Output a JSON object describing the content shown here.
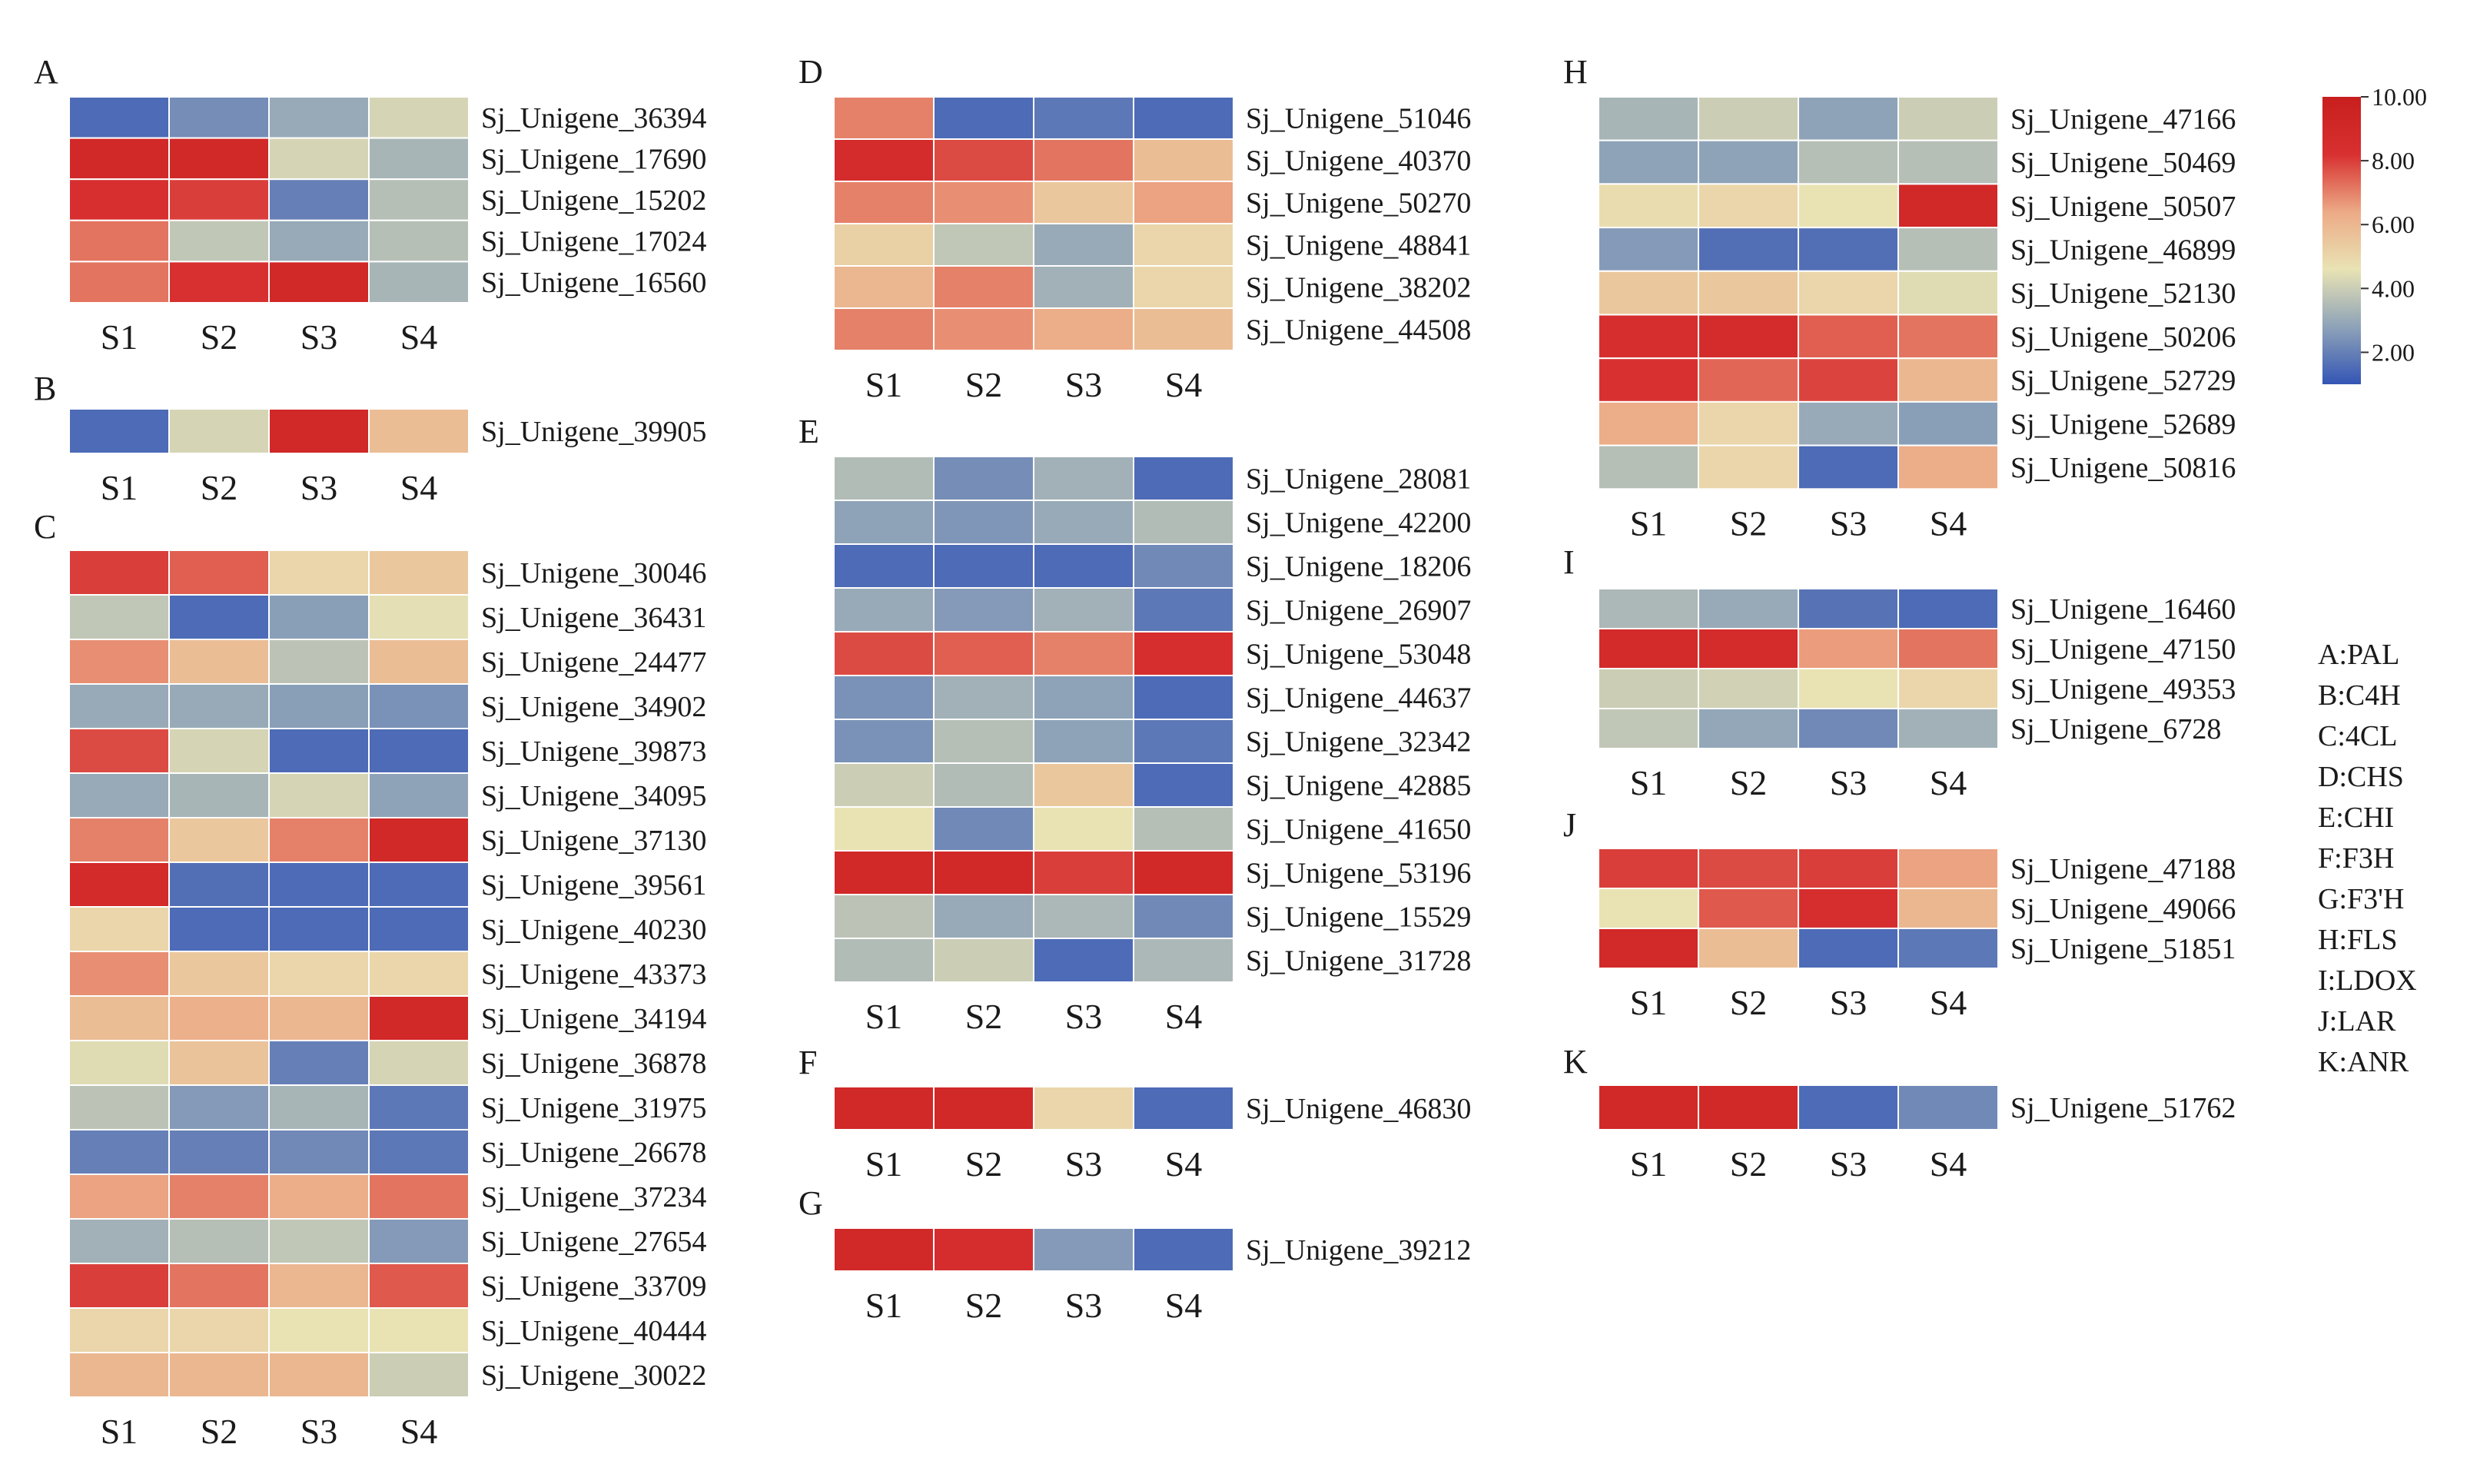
{
  "chart_data": {
    "type": "heatmap",
    "color_scale": {
      "min": 1.0,
      "max": 10.0,
      "ticks": [
        "10.00",
        "8.00",
        "6.00",
        "4.00",
        "2.00"
      ],
      "colors": [
        "#3455b5",
        "#8ea3b8",
        "#e9e3b4",
        "#ecaa86",
        "#d83030",
        "#c81e1e"
      ]
    },
    "columns": [
      "S1",
      "S2",
      "S3",
      "S4"
    ],
    "panels": [
      {
        "letter": "A",
        "rows": [
          {
            "label": "Sj_Unigene_36394",
            "values": [
              1.5,
              2.3,
              3.0,
              4.2
            ]
          },
          {
            "label": "Sj_Unigene_17690",
            "values": [
              9.0,
              9.0,
              4.2,
              3.3
            ]
          },
          {
            "label": "Sj_Unigene_15202",
            "values": [
              8.3,
              8.0,
              2.0,
              3.6
            ]
          },
          {
            "label": "Sj_Unigene_17024",
            "values": [
              7.2,
              3.8,
              3.0,
              3.6
            ]
          },
          {
            "label": "Sj_Unigene_16560",
            "values": [
              7.2,
              8.2,
              9.0,
              3.3
            ]
          }
        ]
      },
      {
        "letter": "B",
        "rows": [
          {
            "label": "Sj_Unigene_39905",
            "values": [
              1.5,
              4.2,
              9.0,
              5.8
            ]
          }
        ]
      },
      {
        "letter": "C",
        "rows": [
          {
            "label": "Sj_Unigene_30046",
            "values": [
              8.0,
              7.5,
              5.0,
              5.5
            ]
          },
          {
            "label": "Sj_Unigene_36431",
            "values": [
              3.8,
              1.5,
              2.7,
              4.5
            ]
          },
          {
            "label": "Sj_Unigene_24477",
            "values": [
              6.8,
              5.8,
              3.7,
              5.8
            ]
          },
          {
            "label": "Sj_Unigene_34902",
            "values": [
              3.0,
              3.0,
              2.7,
              2.4
            ]
          },
          {
            "label": "Sj_Unigene_39873",
            "values": [
              7.8,
              4.2,
              1.5,
              1.5
            ]
          },
          {
            "label": "Sj_Unigene_34095",
            "values": [
              3.0,
              3.3,
              4.2,
              2.8
            ]
          },
          {
            "label": "Sj_Unigene_37130",
            "values": [
              7.0,
              5.5,
              7.0,
              9.0
            ]
          },
          {
            "label": "Sj_Unigene_39561",
            "values": [
              8.8,
              1.6,
              1.5,
              1.5
            ]
          },
          {
            "label": "Sj_Unigene_40230",
            "values": [
              5.0,
              1.5,
              1.5,
              1.5
            ]
          },
          {
            "label": "Sj_Unigene_43373",
            "values": [
              6.8,
              5.5,
              5.0,
              5.0
            ]
          },
          {
            "label": "Sj_Unigene_34194",
            "values": [
              5.8,
              6.2,
              6.0,
              9.0
            ]
          },
          {
            "label": "Sj_Unigene_36878",
            "values": [
              4.4,
              5.6,
              2.0,
              4.2
            ]
          },
          {
            "label": "Sj_Unigene_31975",
            "values": [
              3.7,
              2.6,
              3.3,
              1.8
            ]
          },
          {
            "label": "Sj_Unigene_26678",
            "values": [
              2.0,
              2.0,
              2.2,
              1.8
            ]
          },
          {
            "label": "Sj_Unigene_37234",
            "values": [
              6.5,
              7.0,
              6.3,
              7.2
            ]
          },
          {
            "label": "Sj_Unigene_27654",
            "values": [
              3.2,
              3.6,
              3.8,
              2.6
            ]
          },
          {
            "label": "Sj_Unigene_33709",
            "values": [
              8.0,
              7.2,
              6.0,
              7.6
            ]
          },
          {
            "label": "Sj_Unigene_40444",
            "values": [
              5.0,
              5.0,
              4.6,
              4.6
            ]
          },
          {
            "label": "Sj_Unigene_30022",
            "values": [
              6.0,
              6.0,
              6.0,
              4.0
            ]
          }
        ]
      },
      {
        "letter": "D",
        "rows": [
          {
            "label": "Sj_Unigene_51046",
            "values": [
              7.0,
              1.5,
              1.8,
              1.5
            ]
          },
          {
            "label": "Sj_Unigene_40370",
            "values": [
              8.6,
              7.8,
              7.2,
              5.8
            ]
          },
          {
            "label": "Sj_Unigene_50270",
            "values": [
              7.0,
              6.8,
              5.5,
              6.5
            ]
          },
          {
            "label": "Sj_Unigene_48841",
            "values": [
              5.2,
              3.8,
              3.0,
              5.0
            ]
          },
          {
            "label": "Sj_Unigene_38202",
            "values": [
              6.0,
              7.0,
              3.2,
              5.0
            ]
          },
          {
            "label": "Sj_Unigene_44508",
            "values": [
              7.0,
              6.8,
              6.3,
              5.8
            ]
          }
        ]
      },
      {
        "letter": "E",
        "rows": [
          {
            "label": "Sj_Unigene_28081",
            "values": [
              3.5,
              2.3,
              3.2,
              1.5
            ]
          },
          {
            "label": "Sj_Unigene_42200",
            "values": [
              2.8,
              2.5,
              3.0,
              3.5
            ]
          },
          {
            "label": "Sj_Unigene_18206",
            "values": [
              1.5,
              1.5,
              1.5,
              2.2
            ]
          },
          {
            "label": "Sj_Unigene_26907",
            "values": [
              3.0,
              2.6,
              3.2,
              1.8
            ]
          },
          {
            "label": "Sj_Unigene_53048",
            "values": [
              7.8,
              7.5,
              7.0,
              8.4
            ]
          },
          {
            "label": "Sj_Unigene_44637",
            "values": [
              2.4,
              3.2,
              2.8,
              1.5
            ]
          },
          {
            "label": "Sj_Unigene_32342",
            "values": [
              2.4,
              3.6,
              2.8,
              1.8
            ]
          },
          {
            "label": "Sj_Unigene_42885",
            "values": [
              4.0,
              3.5,
              5.5,
              1.5
            ]
          },
          {
            "label": "Sj_Unigene_41650",
            "values": [
              4.6,
              2.2,
              4.6,
              3.6
            ]
          },
          {
            "label": "Sj_Unigene_53196",
            "values": [
              9.0,
              9.0,
              8.0,
              9.0
            ]
          },
          {
            "label": "Sj_Unigene_15529",
            "values": [
              3.7,
              3.0,
              3.4,
              2.2
            ]
          },
          {
            "label": "Sj_Unigene_31728",
            "values": [
              3.5,
              4.0,
              1.5,
              3.4
            ]
          }
        ]
      },
      {
        "letter": "F",
        "rows": [
          {
            "label": "Sj_Unigene_46830",
            "values": [
              9.0,
              9.0,
              5.0,
              1.5
            ]
          }
        ]
      },
      {
        "letter": "G",
        "rows": [
          {
            "label": "Sj_Unigene_39212",
            "values": [
              9.0,
              8.5,
              2.6,
              1.5
            ]
          }
        ]
      },
      {
        "letter": "H",
        "rows": [
          {
            "label": "Sj_Unigene_47166",
            "values": [
              3.3,
              4.0,
              2.8,
              4.0
            ]
          },
          {
            "label": "Sj_Unigene_50469",
            "values": [
              2.8,
              2.8,
              3.6,
              3.6
            ]
          },
          {
            "label": "Sj_Unigene_50507",
            "values": [
              4.8,
              5.0,
              4.6,
              9.0
            ]
          },
          {
            "label": "Sj_Unigene_46899",
            "values": [
              2.6,
              1.6,
              1.6,
              3.6
            ]
          },
          {
            "label": "Sj_Unigene_52130",
            "values": [
              5.5,
              5.5,
              5.0,
              4.4
            ]
          },
          {
            "label": "Sj_Unigene_50206",
            "values": [
              8.4,
              8.6,
              7.5,
              7.2
            ]
          },
          {
            "label": "Sj_Unigene_52729",
            "values": [
              8.2,
              7.4,
              7.9,
              6.0
            ]
          },
          {
            "label": "Sj_Unigene_52689",
            "values": [
              6.3,
              5.0,
              3.0,
              2.7
            ]
          },
          {
            "label": "Sj_Unigene_50816",
            "values": [
              3.6,
              5.0,
              1.5,
              6.3
            ]
          }
        ]
      },
      {
        "letter": "I",
        "rows": [
          {
            "label": "Sj_Unigene_16460",
            "values": [
              3.4,
              3.0,
              1.7,
              1.5
            ]
          },
          {
            "label": "Sj_Unigene_47150",
            "values": [
              8.8,
              8.7,
              6.6,
              7.2
            ]
          },
          {
            "label": "Sj_Unigene_49353",
            "values": [
              4.0,
              4.1,
              4.6,
              5.0
            ]
          },
          {
            "label": "Sj_Unigene_6728",
            "values": [
              3.8,
              2.9,
              2.2,
              3.2
            ]
          }
        ]
      },
      {
        "letter": "J",
        "rows": [
          {
            "label": "Sj_Unigene_47188",
            "values": [
              8.0,
              7.8,
              8.0,
              6.5
            ]
          },
          {
            "label": "Sj_Unigene_49066",
            "values": [
              4.6,
              7.6,
              8.4,
              6.0
            ]
          },
          {
            "label": "Sj_Unigene_51851",
            "values": [
              8.9,
              5.8,
              1.5,
              1.8
            ]
          }
        ]
      },
      {
        "letter": "K",
        "rows": [
          {
            "label": "Sj_Unigene_51762",
            "values": [
              9.0,
              9.0,
              1.5,
              2.2
            ]
          }
        ]
      }
    ],
    "legend": [
      "A:PAL",
      "B:C4H",
      "C:4CL",
      "D:CHS",
      "E:CHI",
      "F:F3H",
      "G:F3'H",
      "H:FLS",
      "I:LDOX",
      "J:LAR",
      "K:ANR"
    ]
  }
}
